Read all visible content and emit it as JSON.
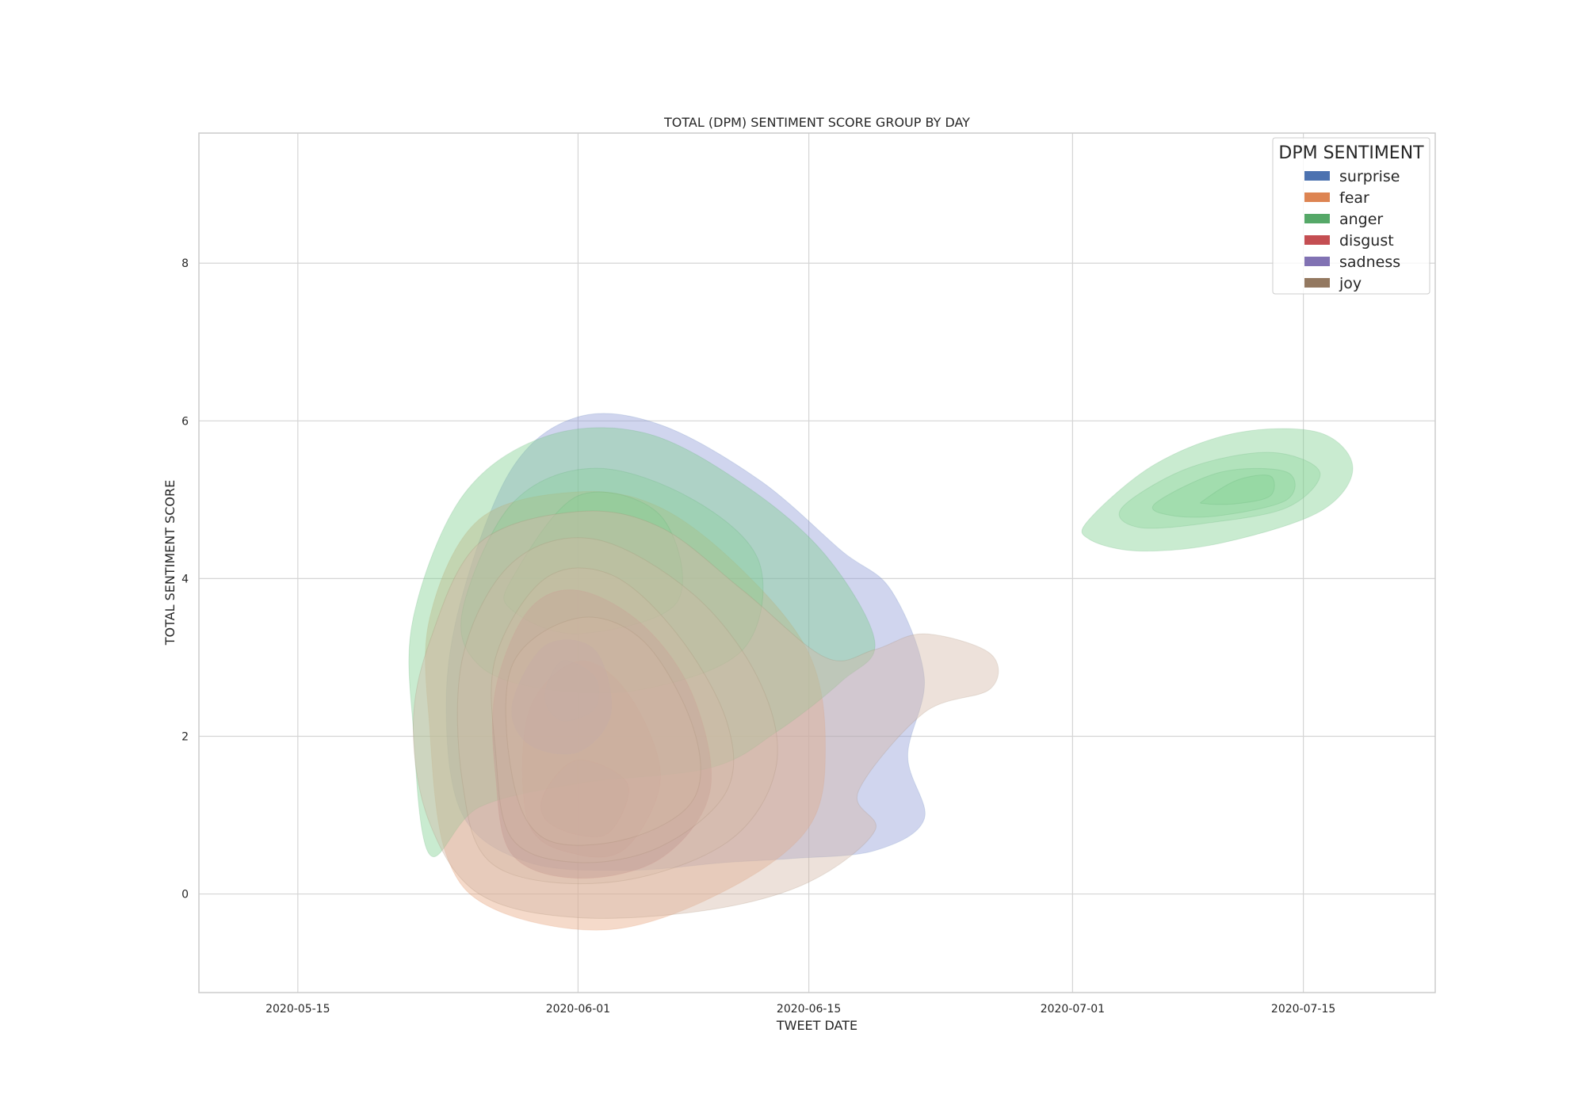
{
  "chart_data": {
    "type": "kde-density-contour",
    "title": "TOTAL (DPM) SENTIMENT SCORE GROUP BY DAY",
    "xlabel": "TWEET DATE",
    "ylabel": "TOTAL SENTIMENT SCORE",
    "xlim": [
      "2020-05-09",
      "2020-07-23"
    ],
    "ylim": [
      -1.25,
      9.65
    ],
    "x_ticks": [
      "2020-05-15",
      "2020-06-01",
      "2020-06-15",
      "2020-07-01",
      "2020-07-15"
    ],
    "y_ticks": [
      0,
      2,
      4,
      6,
      8
    ],
    "grid": true,
    "legend": {
      "title": "DPM SENTIMENT",
      "placement": "top-right"
    },
    "series": [
      {
        "name": "surprise",
        "color": "#4c72b0",
        "fill": "#8e9bd6",
        "regions": [
          {
            "level": 1,
            "outline": [
              [
                "2020-05-25",
                3.8
              ],
              [
                "2020-05-28",
                5.4
              ],
              [
                "2020-06-01",
                6.05
              ],
              [
                "2020-06-06",
                5.95
              ],
              [
                "2020-06-12",
                5.25
              ],
              [
                "2020-06-17",
                4.35
              ],
              [
                "2020-06-20",
                3.85
              ],
              [
                "2020-06-22",
                2.75
              ],
              [
                "2020-06-21",
                1.75
              ],
              [
                "2020-06-22",
                0.95
              ],
              [
                "2020-06-19",
                0.55
              ],
              [
                "2020-06-14",
                0.45
              ],
              [
                "2020-06-10",
                0.4
              ],
              [
                "2020-06-04",
                0.3
              ],
              [
                "2020-05-29",
                0.4
              ],
              [
                "2020-05-25",
                1.0
              ],
              [
                "2020-05-24",
                2.4
              ]
            ]
          }
        ]
      },
      {
        "name": "fear",
        "color": "#dd8452",
        "fill": "#e6a780",
        "regions": [
          {
            "level": 1,
            "outline": [
              [
                "2020-05-23",
                3.5
              ],
              [
                "2020-05-26",
                4.75
              ],
              [
                "2020-06-01",
                5.1
              ],
              [
                "2020-06-06",
                4.9
              ],
              [
                "2020-06-11",
                4.1
              ],
              [
                "2020-06-15",
                3.05
              ],
              [
                "2020-06-16",
                1.9
              ],
              [
                "2020-06-15",
                0.85
              ],
              [
                "2020-06-10",
                0.05
              ],
              [
                "2020-06-03",
                -0.45
              ],
              [
                "2020-05-27",
                -0.2
              ],
              [
                "2020-05-24",
                0.5
              ],
              [
                "2020-05-23",
                2.1
              ]
            ]
          }
        ]
      },
      {
        "name": "anger",
        "color": "#55a868",
        "fill": "#7fcf8f",
        "regions": [
          {
            "level": 1,
            "outline": [
              [
                "2020-05-22",
                3.5
              ],
              [
                "2020-05-25",
                5.05
              ],
              [
                "2020-05-30",
                5.8
              ],
              [
                "2020-06-05",
                5.85
              ],
              [
                "2020-06-11",
                5.2
              ],
              [
                "2020-06-16",
                4.3
              ],
              [
                "2020-06-19",
                3.2
              ],
              [
                "2020-06-17",
                2.7
              ],
              [
                "2020-06-13",
                2.05
              ],
              [
                "2020-06-09",
                1.6
              ],
              [
                "2020-06-01",
                1.4
              ],
              [
                "2020-05-26",
                1.1
              ],
              [
                "2020-05-23",
                0.5
              ],
              [
                "2020-05-22",
                2.1
              ]
            ]
          },
          {
            "level": 2,
            "outline": [
              [
                "2020-05-25",
                3.6
              ],
              [
                "2020-05-28",
                4.95
              ],
              [
                "2020-06-02",
                5.4
              ],
              [
                "2020-06-08",
                5.0
              ],
              [
                "2020-06-12",
                4.2
              ],
              [
                "2020-06-11",
                3.1
              ],
              [
                "2020-06-05",
                2.6
              ],
              [
                "2020-05-30",
                2.6
              ],
              [
                "2020-05-26",
                2.9
              ]
            ]
          },
          {
            "level": 3,
            "outline": [
              [
                "2020-05-28",
                4.0
              ],
              [
                "2020-06-01",
                5.05
              ],
              [
                "2020-06-06",
                4.8
              ],
              [
                "2020-06-07",
                3.7
              ],
              [
                "2020-06-01",
                3.3
              ],
              [
                "2020-05-28",
                3.6
              ]
            ]
          },
          {
            "level": 1,
            "outline": [
              [
                "2020-07-02",
                4.75
              ],
              [
                "2020-07-06",
                5.45
              ],
              [
                "2020-07-11",
                5.85
              ],
              [
                "2020-07-16",
                5.85
              ],
              [
                "2020-07-18",
                5.4
              ],
              [
                "2020-07-16",
                4.85
              ],
              [
                "2020-07-10",
                4.45
              ],
              [
                "2020-07-05",
                4.35
              ],
              [
                "2020-07-02",
                4.5
              ]
            ]
          },
          {
            "level": 2,
            "outline": [
              [
                "2020-07-04",
                4.9
              ],
              [
                "2020-07-08",
                5.4
              ],
              [
                "2020-07-13",
                5.6
              ],
              [
                "2020-07-16",
                5.35
              ],
              [
                "2020-07-14",
                4.9
              ],
              [
                "2020-07-09",
                4.7
              ],
              [
                "2020-07-05",
                4.65
              ]
            ]
          },
          {
            "level": 3,
            "outline": [
              [
                "2020-07-06",
                4.95
              ],
              [
                "2020-07-10",
                5.35
              ],
              [
                "2020-07-14",
                5.35
              ],
              [
                "2020-07-14",
                5.0
              ],
              [
                "2020-07-10",
                4.8
              ],
              [
                "2020-07-07",
                4.8
              ]
            ]
          },
          {
            "level": 4,
            "outline": [
              [
                "2020-07-09",
                5.0
              ],
              [
                "2020-07-11",
                5.25
              ],
              [
                "2020-07-13",
                5.3
              ],
              [
                "2020-07-13",
                5.05
              ],
              [
                "2020-07-11",
                4.95
              ],
              [
                "2020-07-09",
                4.95
              ]
            ]
          }
        ]
      },
      {
        "name": "disgust",
        "color": "#c44e52",
        "fill": "#a86e74",
        "regions": [
          {
            "level": 1,
            "outline": [
              [
                "2020-05-27",
                2.6
              ],
              [
                "2020-05-29",
                3.6
              ],
              [
                "2020-06-01",
                3.85
              ],
              [
                "2020-06-05",
                3.4
              ],
              [
                "2020-06-08",
                2.5
              ],
              [
                "2020-06-09",
                1.3
              ],
              [
                "2020-06-06",
                0.45
              ],
              [
                "2020-06-01",
                0.2
              ],
              [
                "2020-05-28",
                0.5
              ],
              [
                "2020-05-27",
                1.5
              ]
            ]
          },
          {
            "level": 2,
            "outline": [
              [
                "2020-05-29",
                2.3
              ],
              [
                "2020-06-01",
                2.95
              ],
              [
                "2020-06-04",
                2.55
              ],
              [
                "2020-06-06",
                1.5
              ],
              [
                "2020-06-04",
                0.6
              ],
              [
                "2020-06-01",
                0.5
              ],
              [
                "2020-05-29",
                0.9
              ]
            ]
          },
          {
            "level": 3,
            "outline": [
              [
                "2020-05-30",
                1.3
              ],
              [
                "2020-06-01",
                1.7
              ],
              [
                "2020-06-04",
                1.4
              ],
              [
                "2020-06-03",
                0.8
              ],
              [
                "2020-06-01",
                0.75
              ],
              [
                "2020-05-30",
                0.95
              ]
            ]
          }
        ]
      },
      {
        "name": "sadness",
        "color": "#8172b3",
        "fill": "#8c79a6",
        "regions": [
          {
            "level": 1,
            "outline": [
              [
                "2020-05-28",
                2.4
              ],
              [
                "2020-05-30",
                3.15
              ],
              [
                "2020-06-02",
                3.1
              ],
              [
                "2020-06-03",
                2.3
              ],
              [
                "2020-06-01",
                1.8
              ],
              [
                "2020-05-29",
                1.9
              ]
            ]
          },
          {
            "level": 2,
            "outline": [
              [
                "2020-05-30",
                2.5
              ],
              [
                "2020-05-31",
                2.95
              ],
              [
                "2020-06-02",
                2.75
              ],
              [
                "2020-06-02",
                2.35
              ],
              [
                "2020-05-31",
                2.2
              ]
            ]
          }
        ]
      },
      {
        "name": "joy",
        "color": "#937860",
        "fill": "#d4b8a6",
        "regions": [
          {
            "level": 1,
            "outline": [
              [
                "2020-05-23",
                3.2
              ],
              [
                "2020-05-26",
                4.45
              ],
              [
                "2020-06-01",
                4.85
              ],
              [
                "2020-06-06",
                4.65
              ],
              [
                "2020-06-11",
                3.85
              ],
              [
                "2020-06-16",
                3.0
              ],
              [
                "2020-06-19",
                3.1
              ],
              [
                "2020-06-22",
                3.3
              ],
              [
                "2020-06-26",
                3.05
              ],
              [
                "2020-06-26",
                2.6
              ],
              [
                "2020-06-22",
                2.3
              ],
              [
                "2020-06-18",
                1.3
              ],
              [
                "2020-06-19",
                0.8
              ],
              [
                "2020-06-15",
                0.15
              ],
              [
                "2020-06-09",
                -0.2
              ],
              [
                "2020-06-01",
                -0.3
              ],
              [
                "2020-05-26",
                0.0
              ],
              [
                "2020-05-23",
                0.9
              ],
              [
                "2020-05-22",
                2.1
              ]
            ]
          },
          {
            "level": 2,
            "outline": [
              [
                "2020-05-25",
                3.0
              ],
              [
                "2020-05-28",
                4.2
              ],
              [
                "2020-06-02",
                4.5
              ],
              [
                "2020-06-08",
                3.8
              ],
              [
                "2020-06-12",
                2.7
              ],
              [
                "2020-06-13",
                1.6
              ],
              [
                "2020-06-10",
                0.65
              ],
              [
                "2020-06-03",
                0.15
              ],
              [
                "2020-05-27",
                0.35
              ],
              [
                "2020-05-25",
                1.4
              ]
            ]
          },
          {
            "level": 3,
            "outline": [
              [
                "2020-05-27",
                3.0
              ],
              [
                "2020-05-30",
                4.0
              ],
              [
                "2020-06-03",
                4.05
              ],
              [
                "2020-06-07",
                3.3
              ],
              [
                "2020-06-10",
                2.2
              ],
              [
                "2020-06-10",
                1.3
              ],
              [
                "2020-06-06",
                0.6
              ],
              [
                "2020-06-01",
                0.4
              ],
              [
                "2020-05-28",
                0.7
              ],
              [
                "2020-05-27",
                1.8
              ]
            ]
          },
          {
            "level": 4,
            "outline": [
              [
                "2020-05-28",
                2.9
              ],
              [
                "2020-06-01",
                3.5
              ],
              [
                "2020-06-05",
                3.2
              ],
              [
                "2020-06-08",
                2.1
              ],
              [
                "2020-06-08",
                1.2
              ],
              [
                "2020-06-04",
                0.7
              ],
              [
                "2020-05-30",
                0.7
              ],
              [
                "2020-05-28",
                1.5
              ]
            ]
          }
        ]
      }
    ]
  }
}
